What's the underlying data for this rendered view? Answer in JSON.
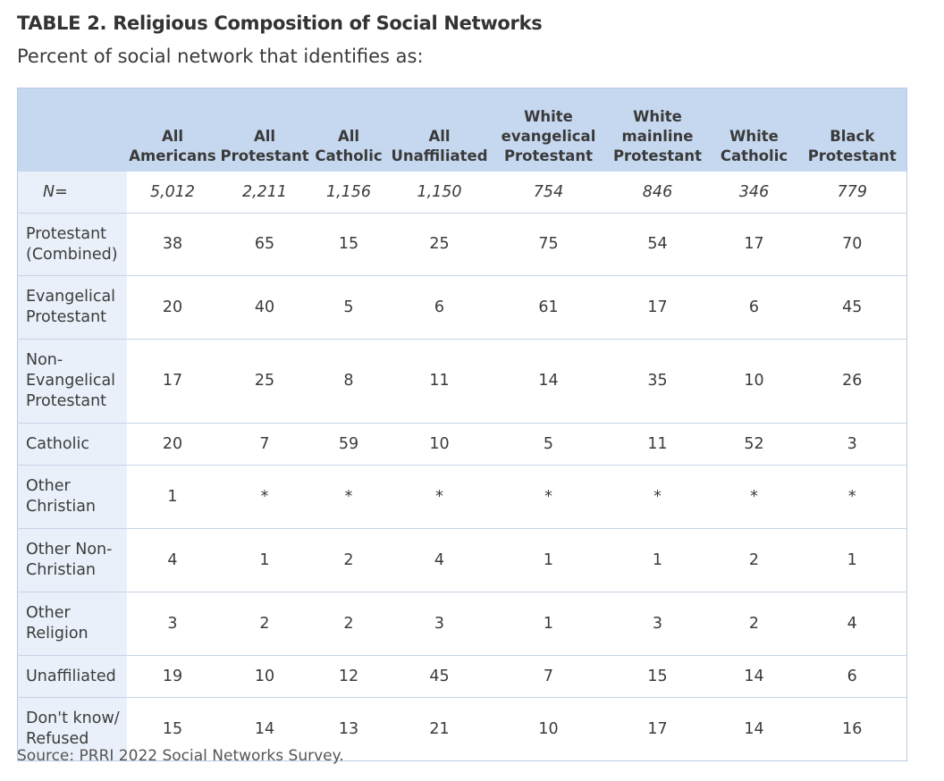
{
  "title": "TABLE 2.  Religious Composition of Social Networks",
  "subtitle": "Percent of social network that identifies as:",
  "source": "Source: PRRI 2022 Social Networks Survey.",
  "table": {
    "headers": [
      [
        "All",
        "Americans"
      ],
      [
        "All",
        "Protestant"
      ],
      [
        "All",
        "Catholic"
      ],
      [
        "All",
        "Unaffiliated"
      ],
      [
        "White",
        "evangelical",
        "Protestant"
      ],
      [
        "White",
        "mainline",
        "Protestant"
      ],
      [
        "White",
        "Catholic"
      ],
      [
        "Black",
        "Protestant"
      ]
    ],
    "n_row": {
      "label": "N=",
      "values": [
        "5,012",
        "2,211",
        "1,156",
        "1,150",
        "754",
        "846",
        "346",
        "779"
      ]
    },
    "rows": [
      {
        "label": [
          "Protestant",
          "(Combined)"
        ],
        "values": [
          "38",
          "65",
          "15",
          "25",
          "75",
          "54",
          "17",
          "70"
        ]
      },
      {
        "label": [
          "Evangelical",
          "Protestant"
        ],
        "values": [
          "20",
          "40",
          "5",
          "6",
          "61",
          "17",
          "6",
          "45"
        ]
      },
      {
        "label": [
          "Non-",
          "Evangelical",
          "Protestant"
        ],
        "values": [
          "17",
          "25",
          "8",
          "11",
          "14",
          "35",
          "10",
          "26"
        ]
      },
      {
        "label": [
          "Catholic"
        ],
        "values": [
          "20",
          "7",
          "59",
          "10",
          "5",
          "11",
          "52",
          "3"
        ]
      },
      {
        "label": [
          "Other",
          "Christian"
        ],
        "values": [
          "1",
          "*",
          "*",
          "*",
          "*",
          "*",
          "*",
          "*"
        ]
      },
      {
        "label": [
          "Other Non-",
          "Christian"
        ],
        "values": [
          "4",
          "1",
          "2",
          "4",
          "1",
          "1",
          "2",
          "1"
        ]
      },
      {
        "label": [
          "Other",
          "Religion"
        ],
        "values": [
          "3",
          "2",
          "2",
          "3",
          "1",
          "3",
          "2",
          "4"
        ]
      },
      {
        "label": [
          "Unaffiliated"
        ],
        "values": [
          "19",
          "10",
          "12",
          "45",
          "7",
          "15",
          "14",
          "6"
        ]
      },
      {
        "label": [
          "Don't know/",
          "Refused"
        ],
        "values": [
          "15",
          "14",
          "13",
          "21",
          "10",
          "17",
          "14",
          "16"
        ]
      }
    ]
  },
  "colors": {
    "header_bg": "#c6d8f0",
    "label_bg": "#eaf0fa",
    "border": "#c6d4e6"
  }
}
